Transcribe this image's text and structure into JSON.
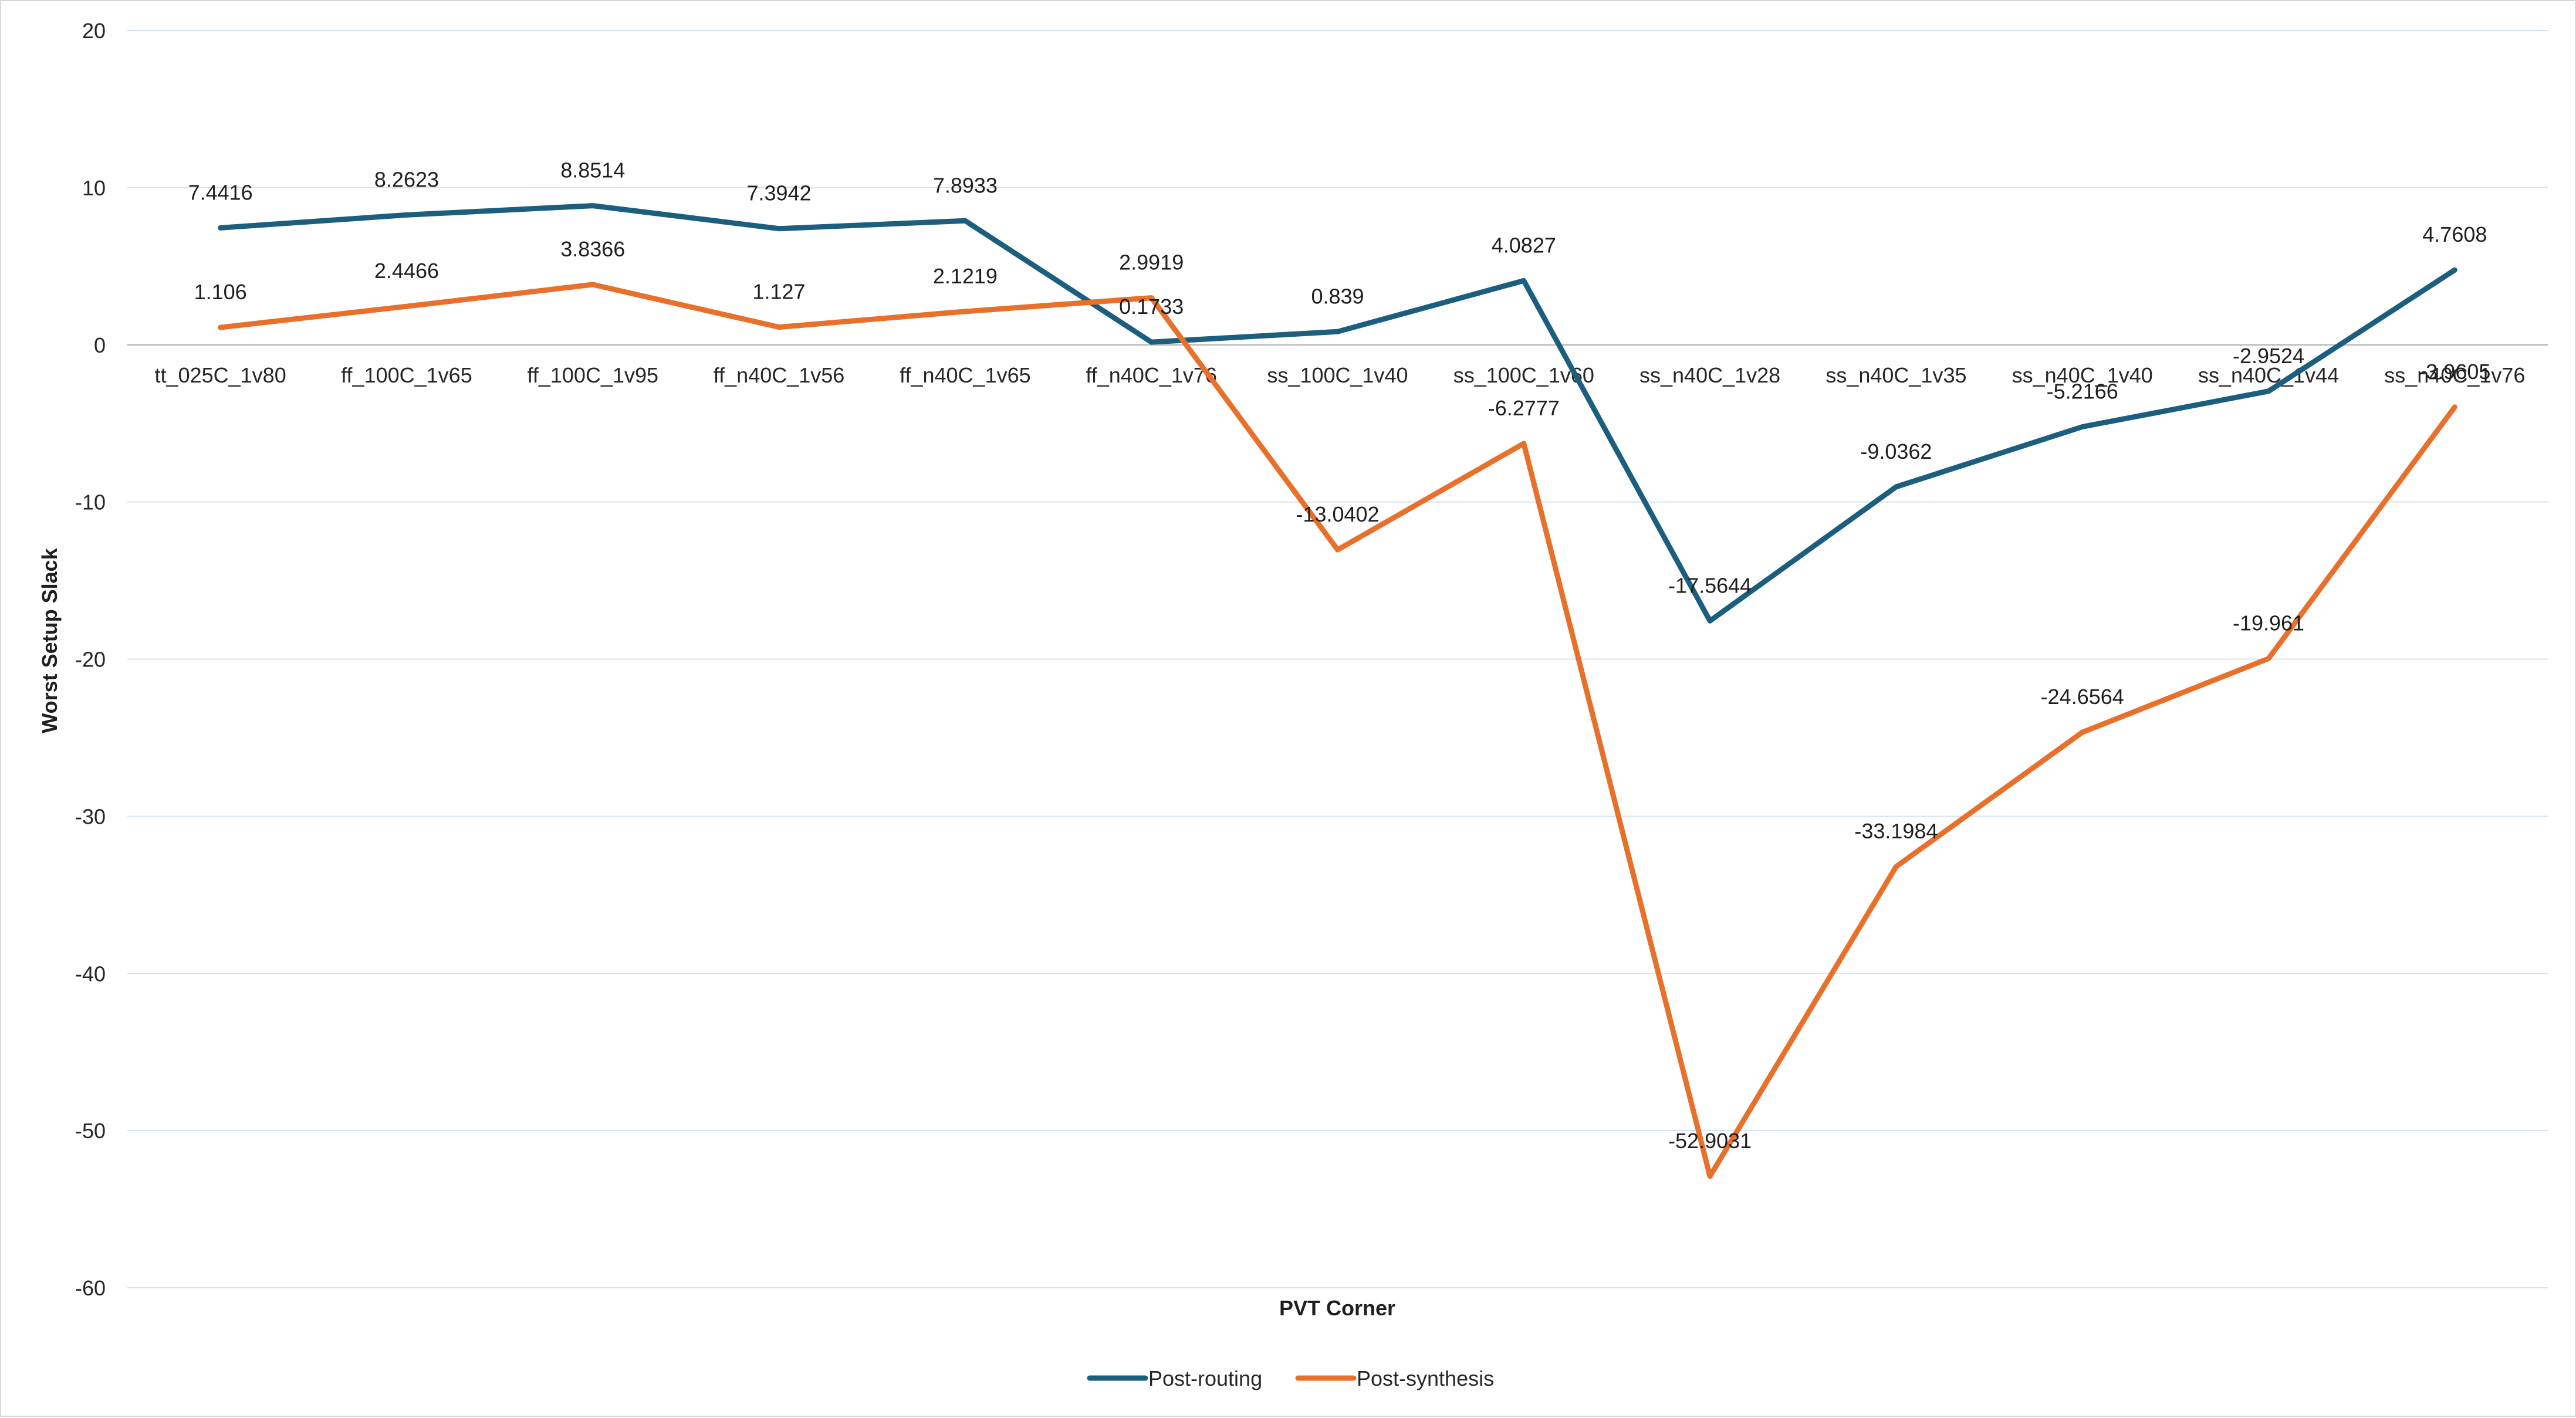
{
  "chart_data": {
    "type": "line",
    "title": "",
    "xlabel": "PVT Corner",
    "ylabel": "Worst Setup Slack",
    "ylim": [
      -60,
      20
    ],
    "yticks": [
      20,
      10,
      0,
      -10,
      -20,
      -30,
      -40,
      -50,
      -60
    ],
    "grid": true,
    "legend_position": "bottom",
    "categories": [
      "tt_025C_1v80",
      "ff_100C_1v65",
      "ff_100C_1v95",
      "ff_n40C_1v56",
      "ff_n40C_1v65",
      "ff_n40C_1v76",
      "ss_100C_1v40",
      "ss_100C_1v60",
      "ss_n40C_1v28",
      "ss_n40C_1v35",
      "ss_n40C_1v40",
      "ss_n40C_1v44",
      "ss_n40C_1v76"
    ],
    "series": [
      {
        "name": "Post-routing",
        "color": "#1b5e7e",
        "values": [
          7.4416,
          8.2623,
          8.8514,
          7.3942,
          7.8933,
          0.1733,
          0.839,
          4.0827,
          -17.5644,
          -9.0362,
          -5.2166,
          -2.9524,
          4.7608
        ],
        "labels": [
          "7.4416",
          "8.2623",
          "8.8514",
          "7.3942",
          "7.8933",
          "0.1733",
          "0.839",
          "4.0827",
          "-17.5644",
          "-9.0362",
          "-5.2166",
          "-2.9524",
          "4.7608"
        ]
      },
      {
        "name": "Post-synthesis",
        "color": "#e8702a",
        "values": [
          1.106,
          2.4466,
          3.8366,
          1.127,
          2.1219,
          2.9919,
          -13.0402,
          -6.2777,
          -52.9031,
          -33.1984,
          -24.6564,
          -19.961,
          -3.9605
        ],
        "labels": [
          "1.106",
          "2.4466",
          "3.8366",
          "1.127",
          "2.1219",
          "2.9919",
          "-13.0402",
          "-6.2777",
          "-52.9031",
          "-33.1984",
          "-24.6564",
          "-19.961",
          "-3.9605"
        ]
      }
    ]
  }
}
